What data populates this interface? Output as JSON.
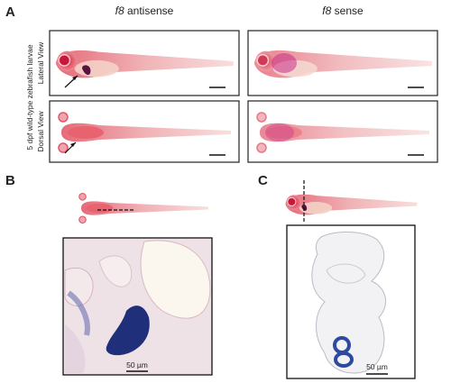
{
  "panel_a": {
    "label": "A",
    "columns": [
      {
        "gene": "f8",
        "probe": "antisense"
      },
      {
        "gene": "f8",
        "probe": "sense"
      }
    ],
    "side_title": "5 dpf wild-type zebrafish larvae",
    "rows": [
      "Lateral View",
      "Dorsal View"
    ]
  },
  "panel_b": {
    "label": "B",
    "scale_bar": "50 µm"
  },
  "panel_c": {
    "label": "C",
    "scale_bar": "50 µm"
  }
}
